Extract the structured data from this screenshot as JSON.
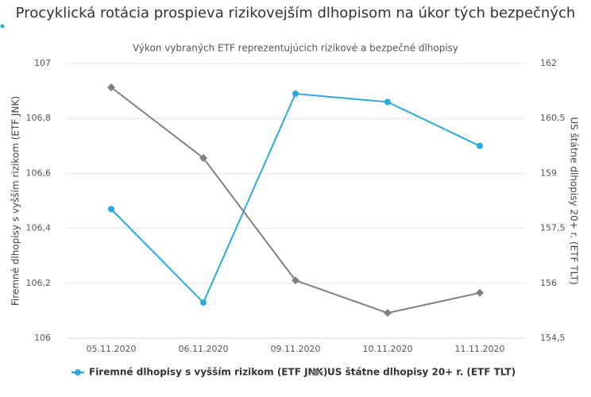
{
  "chart_data": {
    "type": "line",
    "title": "Procyklická rotácia prospieva rizikovejším dlhopisom na úkor tých bezpečných",
    "subtitle": "Výkon vybraných ETF reprezentujúcich rizikové a bezpečné dlhopisy",
    "y_label": "Firemné dlhopisy s vyšším rizikom (ETF JNK)",
    "y2_label": "US štátne dlhopisy 20+ r. (ETF TLT)",
    "categories": [
      "05.11.2020",
      "06.11.2020",
      "09.11.2020",
      "10.11.2020",
      "11.11.2020"
    ],
    "series": [
      {
        "name": "Firemné dlhopisy s vyšším rizikom (ETF JNK)",
        "color": "#2ba9e1",
        "values": [
          106.47,
          106.13,
          106.89,
          106.86,
          106.7
        ]
      },
      {
        "name": "US štátne dlhopisy 20+ r. (ETF TLT)",
        "color": "#808080",
        "axis": "y2",
        "values": [
          161.35,
          159.42,
          156.08,
          155.19,
          155.74
        ]
      }
    ],
    "ylim": [
      106,
      107
    ],
    "yticks": [
      106,
      {
        "value": 106.2,
        "label": "106,2"
      },
      {
        "value": 106.4,
        "label": "106,4"
      },
      {
        "value": 106.6,
        "label": "106,6"
      },
      {
        "value": 106.8,
        "label": "106,8"
      },
      107
    ],
    "y2lim": [
      154.5,
      162
    ],
    "y2ticks": [
      {
        "value": 154.5,
        "label": "154,5"
      },
      156,
      {
        "value": 157.5,
        "label": "157,5"
      },
      159,
      {
        "value": 160.5,
        "label": "160,5"
      },
      162
    ],
    "grid": true,
    "legend": "bottom"
  }
}
